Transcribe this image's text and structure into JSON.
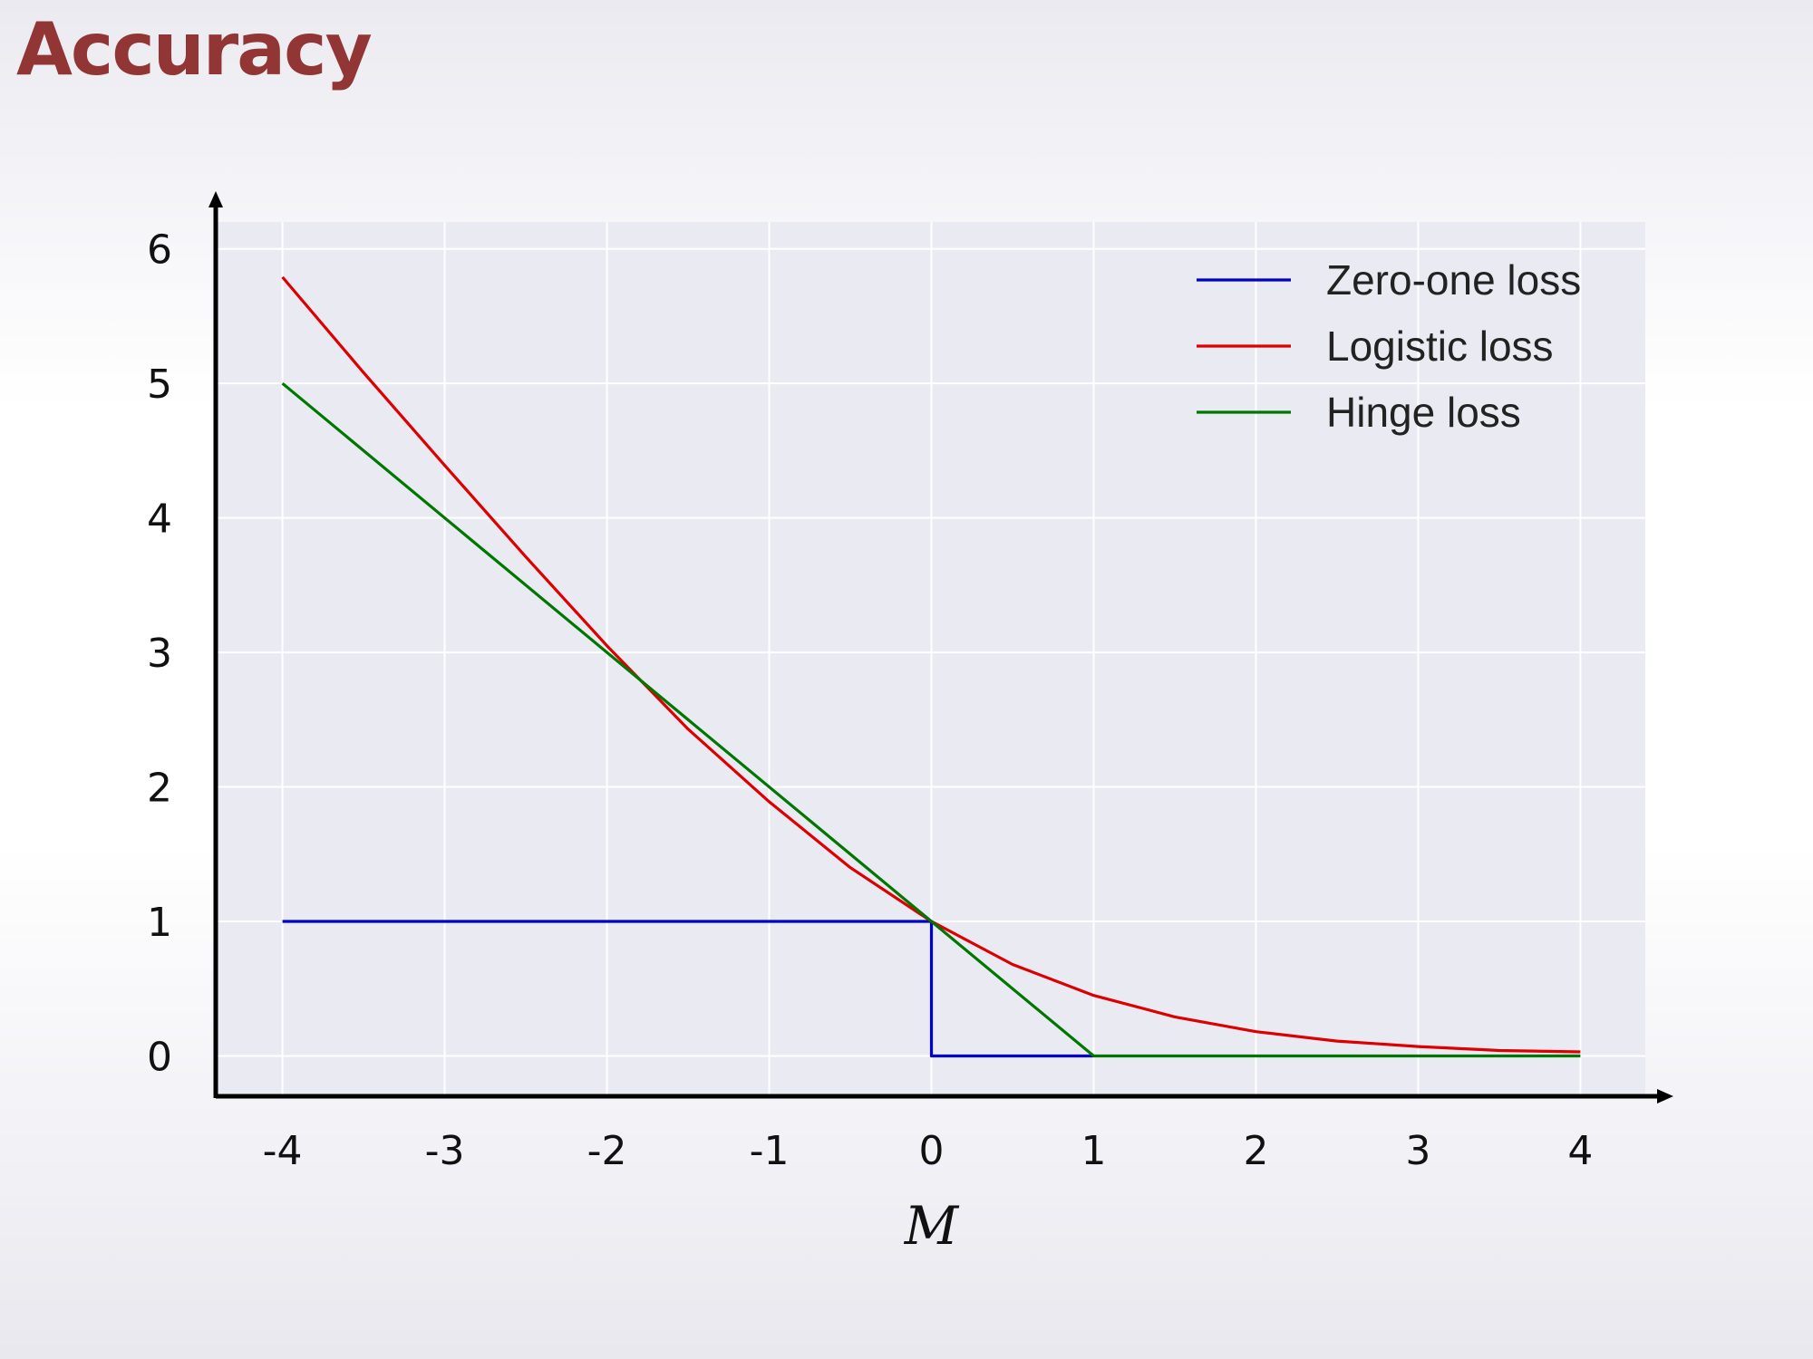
{
  "slide": {
    "title": "Accuracy"
  },
  "chart_data": {
    "type": "line",
    "title": "",
    "xlabel": "M",
    "ylabel": "",
    "xlim": [
      -4.4,
      4.4
    ],
    "ylim": [
      -0.3,
      6.2
    ],
    "x_ticks": [
      "-4",
      "-3",
      "-2",
      "-1",
      "0",
      "1",
      "2",
      "3",
      "4"
    ],
    "y_ticks": [
      "0",
      "1",
      "2",
      "3",
      "4",
      "5",
      "6"
    ],
    "grid": true,
    "legend_position": "top-right",
    "colors": {
      "plot_background": "#eaeaf2",
      "grid": "#ffffff",
      "axis": "#000000"
    },
    "series": [
      {
        "name": "Zero-one loss",
        "color": "#0000cc",
        "points": [
          [
            -4,
            1
          ],
          [
            0,
            1
          ],
          [
            0,
            0
          ],
          [
            1,
            0
          ]
        ]
      },
      {
        "name": "Logistic loss",
        "color": "#dd0000",
        "points": [
          [
            -4,
            5.79
          ],
          [
            -3.5,
            5.08
          ],
          [
            -3,
            4.39
          ],
          [
            -2.5,
            3.71
          ],
          [
            -2,
            3.05
          ],
          [
            -1.5,
            2.43
          ],
          [
            -1,
            1.89
          ],
          [
            -0.5,
            1.4
          ],
          [
            0,
            1.0
          ],
          [
            0.5,
            0.68
          ],
          [
            1,
            0.45
          ],
          [
            1.5,
            0.29
          ],
          [
            2,
            0.18
          ],
          [
            2.5,
            0.11
          ],
          [
            3,
            0.07
          ],
          [
            3.5,
            0.04
          ],
          [
            4,
            0.03
          ]
        ]
      },
      {
        "name": "Hinge loss",
        "color": "#007700",
        "points": [
          [
            -4,
            5
          ],
          [
            1,
            0
          ],
          [
            4,
            0
          ]
        ]
      }
    ]
  }
}
